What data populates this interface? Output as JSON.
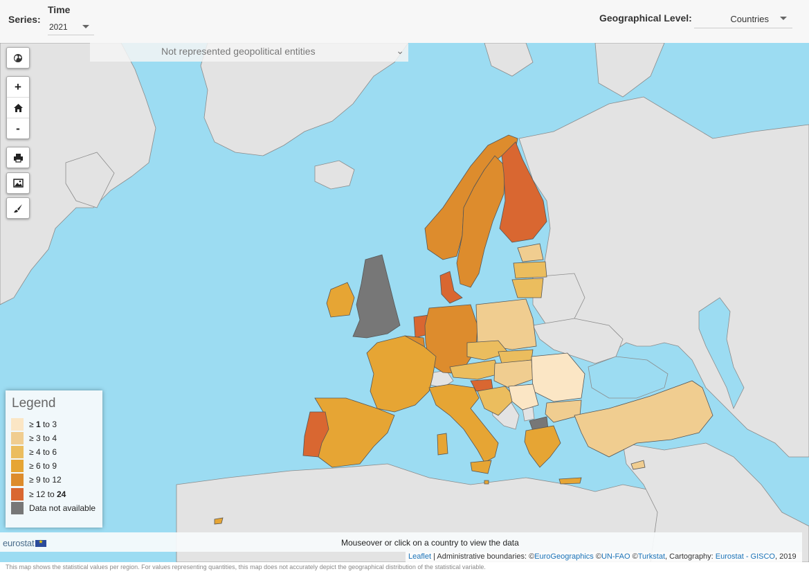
{
  "header": {
    "series_label": "Series:",
    "time_label": "Time",
    "time_value": "2021",
    "geo_label": "Geographical Level:",
    "geo_value": "Countries"
  },
  "not_represented": "Not represented geopolitical entities",
  "controls": {
    "globe": "globe-icon",
    "zoom_in": "+",
    "home": "home-icon",
    "zoom_out": "-",
    "print": "print-icon",
    "image": "image-icon",
    "brush": "brush-icon"
  },
  "legend": {
    "title": "Legend",
    "classes": [
      {
        "ge": "≥",
        "from": "1",
        "to_word": "to",
        "to": "3",
        "color": "#fbe6c5"
      },
      {
        "ge": "≥",
        "from": "3",
        "to_word": "to",
        "to": "4",
        "color": "#f0cd90"
      },
      {
        "ge": "≥",
        "from": "4",
        "to_word": "to",
        "to": "6",
        "color": "#ebbd5e"
      },
      {
        "ge": "≥",
        "from": "6",
        "to_word": "to",
        "to": "9",
        "color": "#e6a534"
      },
      {
        "ge": "≥",
        "from": "9",
        "to_word": "to",
        "to": "12",
        "color": "#dd8c2d"
      },
      {
        "ge": "≥",
        "from": "12",
        "to_word": "to",
        "to": "24",
        "color": "#d96731"
      }
    ],
    "na_label": "Data not available",
    "na_color": "#777777"
  },
  "colors": {
    "sea": "#9cdcf2",
    "land_outside": "#e3e3e3",
    "border": "#555555"
  },
  "infobar": {
    "logo": "eurostat",
    "mouseover": "Mouseover or click on a country to view the data"
  },
  "attribution": {
    "leaflet": "Leaflet",
    "sep": " | Administrative boundaries: ©",
    "eurogeo": "EuroGeographics",
    "copy1": " ©",
    "unfao": "UN-FAO",
    "copy2": " ©",
    "turkstat": "Turkstat",
    "carto": ", Cartography: ",
    "gisco": "Eurostat - GISCO",
    "year": ", 2019"
  },
  "footnote": "This map shows the statistical values per region. For values representing quantities, this map does not accurately depict the geographical distribution of the statistical variable."
}
